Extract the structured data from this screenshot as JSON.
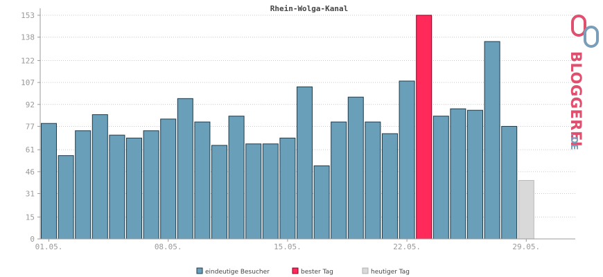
{
  "chart_data": {
    "type": "bar",
    "title": "Rhein-Wolga-Kanal",
    "xlabel": "",
    "ylabel": "",
    "ylim": [
      0,
      153
    ],
    "yticks": [
      0,
      15,
      31,
      46,
      61,
      77,
      92,
      107,
      122,
      138,
      153
    ],
    "xtick_labels": [
      "01.05.",
      "08.05.",
      "15.05.",
      "22.05.",
      "29.05."
    ],
    "xtick_indices": [
      0,
      7,
      14,
      21,
      28
    ],
    "grid": true,
    "legend_position": "bottom",
    "categories": [
      "01.05.",
      "02.05.",
      "03.05.",
      "04.05.",
      "05.05.",
      "06.05.",
      "07.05.",
      "08.05.",
      "09.05.",
      "10.05.",
      "11.05.",
      "12.05.",
      "13.05.",
      "14.05.",
      "15.05.",
      "16.05.",
      "17.05.",
      "18.05.",
      "19.05.",
      "20.05.",
      "21.05.",
      "22.05.",
      "23.05.",
      "24.05.",
      "25.05.",
      "26.05.",
      "27.05.",
      "28.05.",
      "29.05."
    ],
    "values": [
      79,
      57,
      74,
      85,
      71,
      69,
      74,
      82,
      96,
      80,
      64,
      84,
      65,
      65,
      69,
      104,
      50,
      80,
      97,
      80,
      72,
      108,
      153,
      84,
      89,
      88,
      135,
      77,
      40
    ],
    "best_index": 22,
    "today_index": 28,
    "series": [
      {
        "name": "eindeutige Besucher",
        "color": "#6a9fba"
      },
      {
        "name": "bester Tag",
        "color": "#ff2a5a"
      },
      {
        "name": "heutiger Tag",
        "color": "#d9d9d9"
      }
    ]
  },
  "logo": {
    "text": "BLOGGEREI",
    "suffix": ".DE"
  }
}
